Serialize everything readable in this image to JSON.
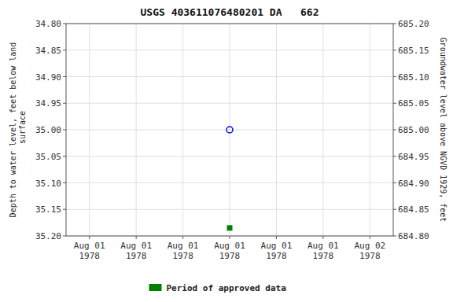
{
  "chart_data": {
    "type": "scatter",
    "title": "USGS 403611076480201 DA   662",
    "y_label": "Depth to water level, feet below land\n surface",
    "y2_label": "Groundwater level above NGVD 1929, feet",
    "categories": [
      "Aug 01\n1978",
      "Aug 01\n1978",
      "Aug 01\n1978",
      "Aug 01\n1978",
      "Aug 01\n1978",
      "Aug 01\n1978",
      "Aug 02\n1978"
    ],
    "series": [
      {
        "values": [
          null,
          null,
          null,
          35.0,
          null,
          null,
          null
        ],
        "color": "blue",
        "marker": "open-circle"
      },
      {
        "name": "Period of approved data",
        "values": [
          null,
          null,
          null,
          35.185,
          null,
          null,
          null
        ],
        "color": "#008000",
        "marker": "square"
      }
    ],
    "ylim": [
      35.2,
      34.8
    ],
    "yticks": [
      {
        "value": 34.8,
        "label": "34.80"
      },
      {
        "value": 34.85,
        "label": "34.85"
      },
      {
        "value": 34.9,
        "label": "34.90"
      },
      {
        "value": 34.95,
        "label": "34.95"
      },
      {
        "value": 35.0,
        "label": "35.00"
      },
      {
        "value": 35.05,
        "label": "35.05"
      },
      {
        "value": 35.1,
        "label": "35.10"
      },
      {
        "value": 35.15,
        "label": "35.15"
      },
      {
        "value": 35.2,
        "label": "35.20"
      }
    ],
    "y2lim": [
      684.8,
      685.2
    ],
    "y2ticks": [
      {
        "value": 685.2,
        "label": "685.20"
      },
      {
        "value": 685.15,
        "label": "685.15"
      },
      {
        "value": 685.1,
        "label": "685.10"
      },
      {
        "value": 685.05,
        "label": "685.05"
      },
      {
        "value": 685.0,
        "label": "685.00"
      },
      {
        "value": 684.95,
        "label": "684.95"
      },
      {
        "value": 684.9,
        "label": "684.90"
      },
      {
        "value": 684.85,
        "label": "684.85"
      },
      {
        "value": 684.8,
        "label": "684.80"
      }
    ],
    "grid": true,
    "legend": "bottom"
  }
}
